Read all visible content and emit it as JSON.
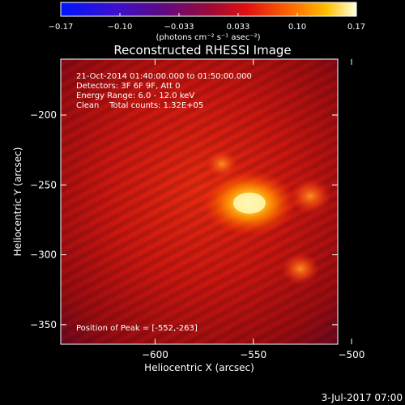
{
  "colorbar": {
    "ticks": [
      "-0.17",
      "-0.10",
      "-0.033",
      "0.033",
      "0.10",
      "0.17"
    ],
    "units": "(photons cm⁻² s⁻¹ asec⁻²)"
  },
  "chart_data": {
    "type": "heatmap",
    "title": "Reconstructed RHESSI Image",
    "xlabel": "Heliocentric X (arcsec)",
    "ylabel": "Heliocentric Y (arcsec)",
    "xlim": [
      -648,
      -507
    ],
    "ylim": [
      -364,
      -160
    ],
    "xticks": [
      -600,
      -550,
      -500
    ],
    "yticks": [
      -200,
      -250,
      -300,
      -350
    ],
    "xtick_labels": [
      "−600",
      "−550",
      "−500"
    ],
    "ytick_labels": [
      "−200",
      "−250",
      "−300",
      "−350"
    ],
    "colorbar_range": [
      -0.17,
      0.17
    ],
    "colormap": "rainbow-like (blue-violet-red-orange-yellow-white)",
    "peak_position": [
      -552,
      -263
    ],
    "sources": [
      {
        "x": -552,
        "y": -263,
        "relative_intensity": 1.0
      },
      {
        "x": -521,
        "y": -258,
        "relative_intensity": 0.55
      },
      {
        "x": -526,
        "y": -310,
        "relative_intensity": 0.45
      },
      {
        "x": -566,
        "y": -235,
        "relative_intensity": 0.35
      }
    ],
    "annotations": [
      "21-Oct-2014 01:40:00.000 to 01:50:00.000",
      "Detectors: 3F 6F 9F, Att 0",
      "Energy Range: 6.0 - 12.0 keV",
      "Clean    Total counts: 1.32E+05",
      "Position of Peak = [-552,-263]"
    ]
  },
  "footer": {
    "date": "3-Jul-2017 07:00"
  }
}
